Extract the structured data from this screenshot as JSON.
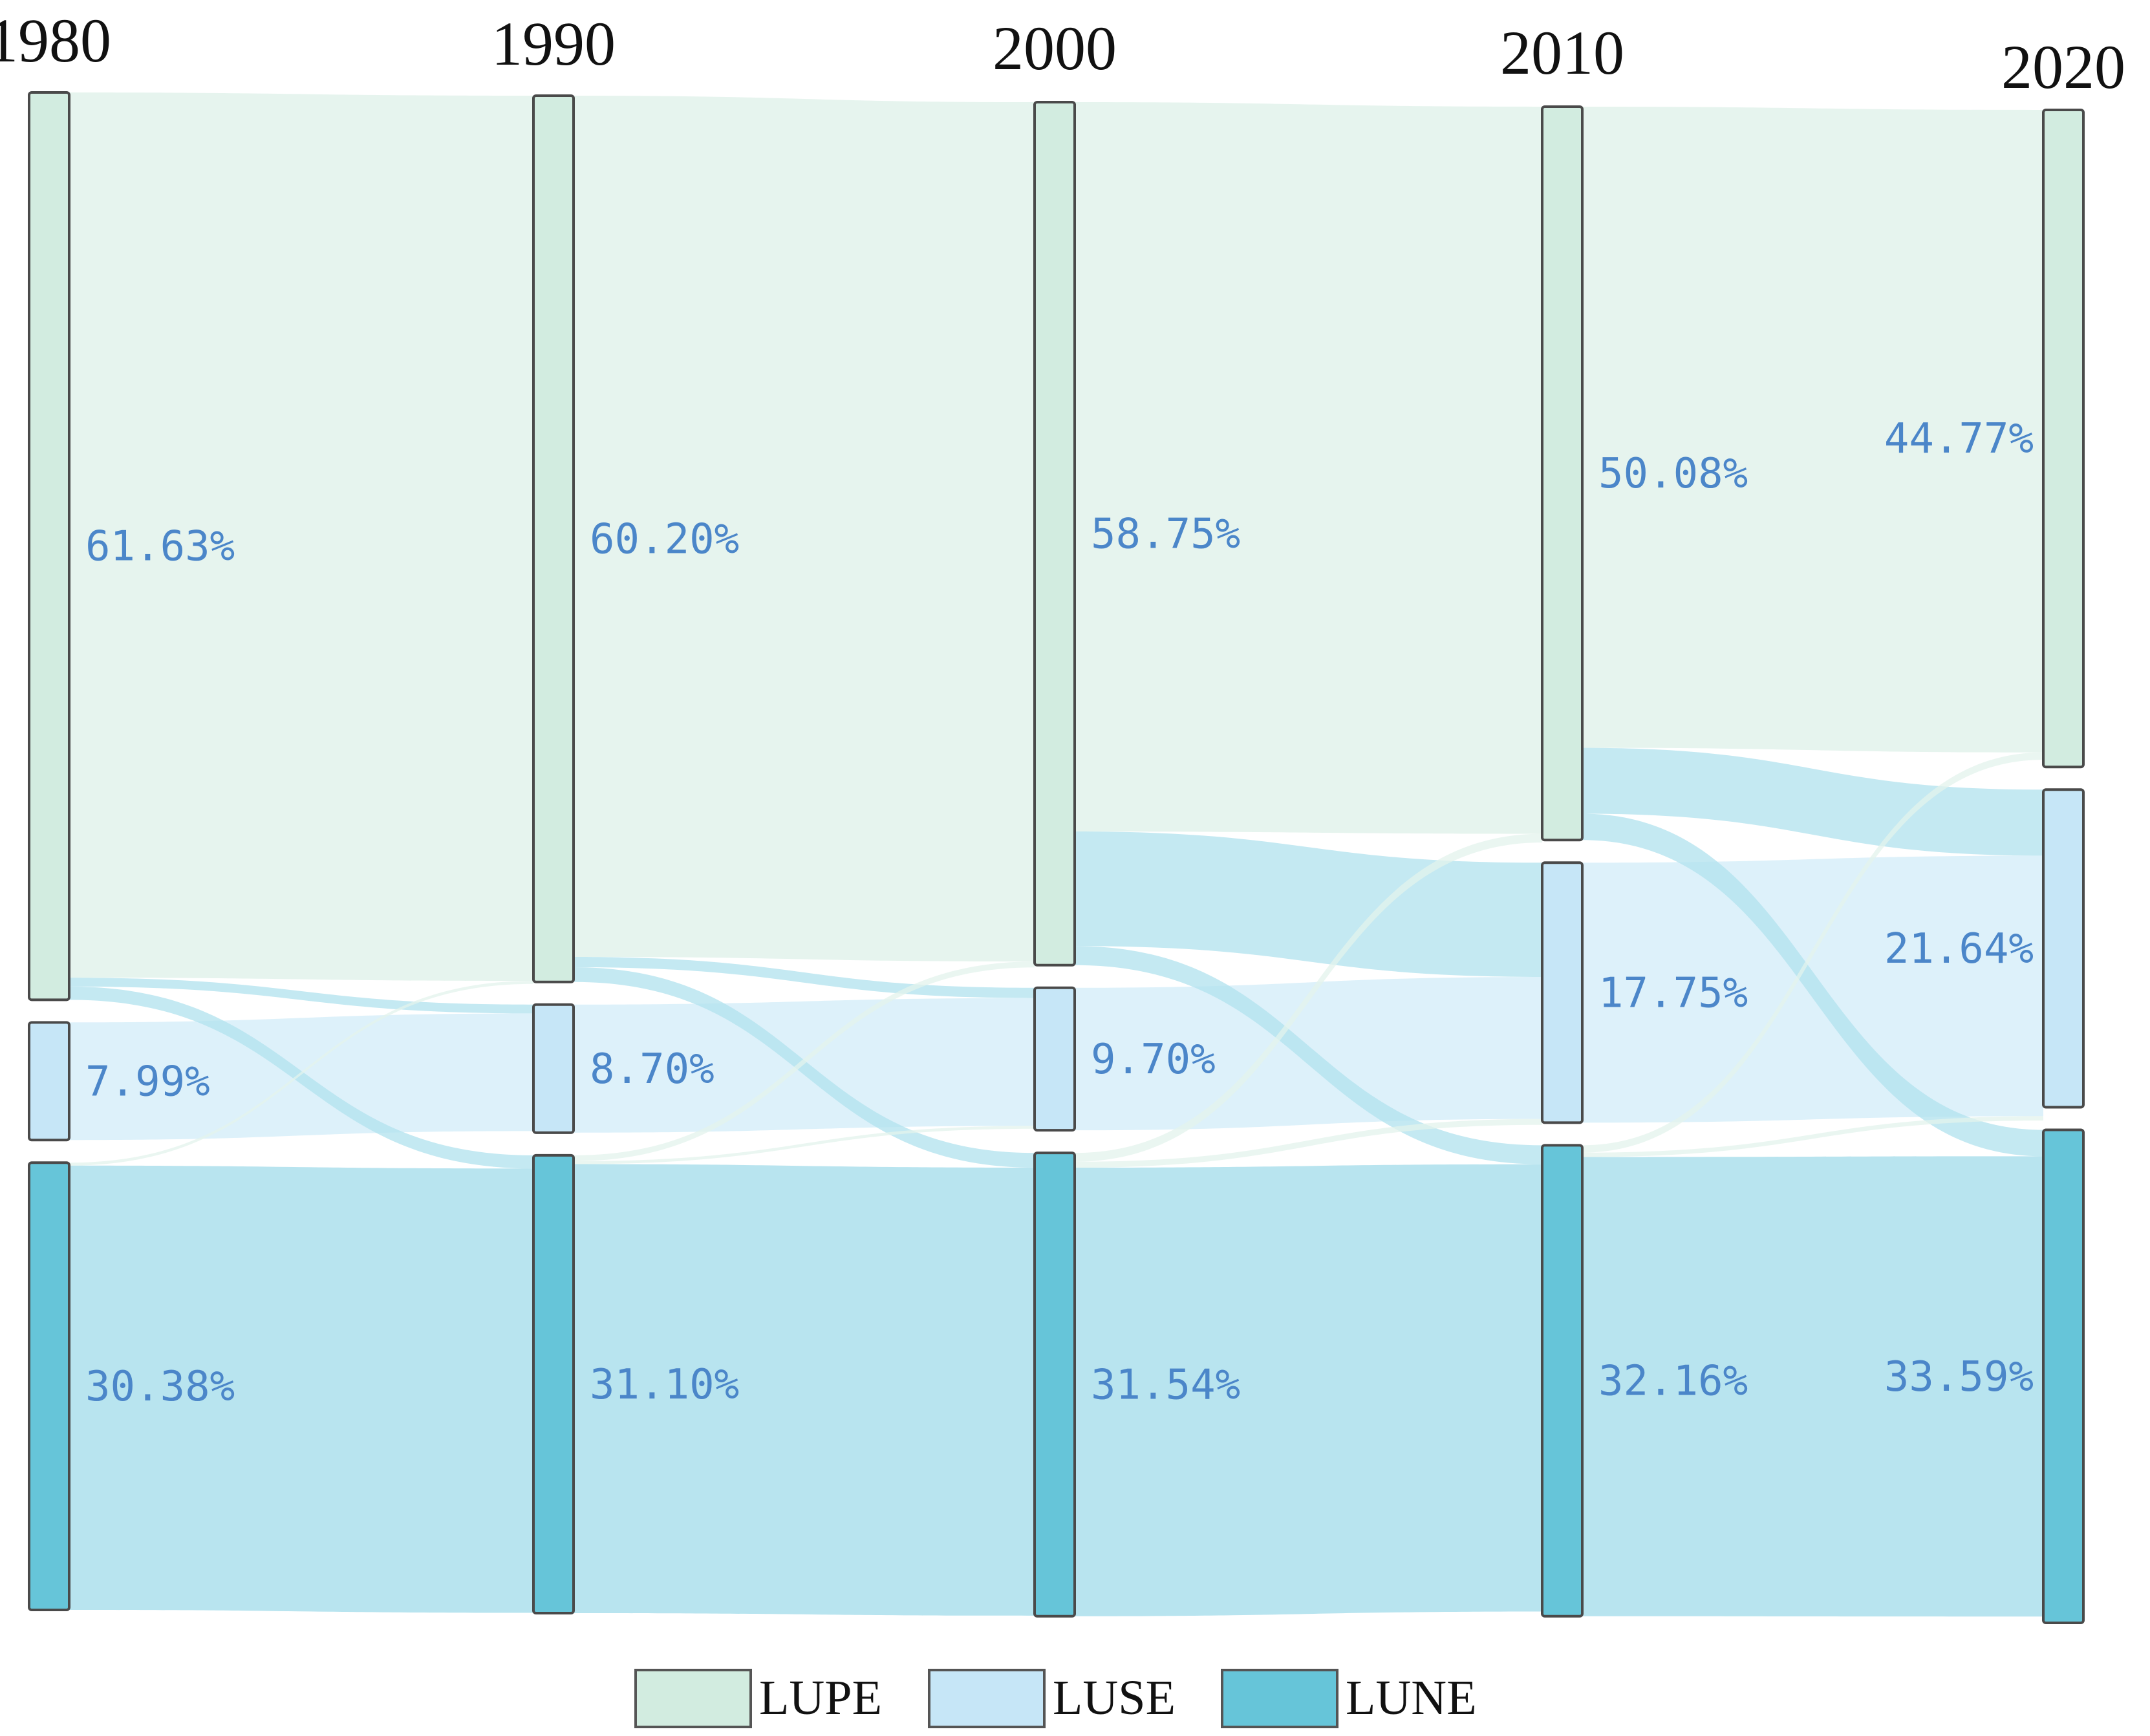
{
  "chart_data": {
    "type": "sankey",
    "title": "",
    "years": [
      "1980",
      "1990",
      "2000",
      "2010",
      "2020"
    ],
    "categories": [
      "LUPE",
      "LUSE",
      "LUNE"
    ],
    "shares_percent": {
      "LUPE": [
        61.63,
        60.2,
        58.75,
        50.08,
        44.77
      ],
      "LUSE": [
        7.99,
        8.7,
        9.7,
        17.75,
        21.64
      ],
      "LUNE": [
        30.38,
        31.1,
        31.54,
        32.16,
        33.59
      ]
    },
    "labels": {
      "LUPE": [
        "61.63%",
        "60.20%",
        "58.75%",
        "50.08%",
        "44.77%"
      ],
      "LUSE": [
        "7.99%",
        "8.70%",
        "9.70%",
        "17.75%",
        "21.64%"
      ],
      "LUNE": [
        "30.38%",
        "31.10%",
        "31.54%",
        "32.16%",
        "33.59%"
      ]
    },
    "colors": {
      "LUPE": {
        "node": "#d2ece0",
        "flow": "#e3f3ec"
      },
      "LUSE": {
        "node": "#c6e6f7",
        "flow": "#d9eff9"
      },
      "LUNE": {
        "node": "#66c5d9",
        "flow": "#b0e1ed"
      }
    },
    "legend": {
      "placement": "bottom-center",
      "items": [
        {
          "label": "LUPE",
          "color": "#d2ece0"
        },
        {
          "label": "LUSE",
          "color": "#c6e6f7"
        },
        {
          "label": "LUNE",
          "color": "#66c5d9"
        }
      ]
    },
    "cross_flows_approx_percent": [
      {
        "period": "1980-1990",
        "from": "LUPE",
        "to": "LUSE",
        "value": 0.6
      },
      {
        "period": "1980-1990",
        "from": "LUPE",
        "to": "LUNE",
        "value": 0.9
      },
      {
        "period": "1980-1990",
        "from": "LUNE",
        "to": "LUPE",
        "value": 0.2
      },
      {
        "period": "1990-2000",
        "from": "LUPE",
        "to": "LUSE",
        "value": 0.7
      },
      {
        "period": "1990-2000",
        "from": "LUPE",
        "to": "LUNE",
        "value": 1.0
      },
      {
        "period": "1990-2000",
        "from": "LUNE",
        "to": "LUPE",
        "value": 0.4
      },
      {
        "period": "1990-2000",
        "from": "LUNE",
        "to": "LUSE",
        "value": 0.2
      },
      {
        "period": "2000-2010",
        "from": "LUPE",
        "to": "LUSE",
        "value": 7.8
      },
      {
        "period": "2000-2010",
        "from": "LUPE",
        "to": "LUNE",
        "value": 1.3
      },
      {
        "period": "2000-2010",
        "from": "LUNE",
        "to": "LUPE",
        "value": 0.6
      },
      {
        "period": "2000-2010",
        "from": "LUNE",
        "to": "LUSE",
        "value": 0.4
      },
      {
        "period": "2010-2020",
        "from": "LUPE",
        "to": "LUSE",
        "value": 4.5
      },
      {
        "period": "2010-2020",
        "from": "LUPE",
        "to": "LUNE",
        "value": 1.8
      },
      {
        "period": "2010-2020",
        "from": "LUNE",
        "to": "LUPE",
        "value": 0.5
      },
      {
        "period": "2010-2020",
        "from": "LUNE",
        "to": "LUSE",
        "value": 0.3
      }
    ]
  }
}
